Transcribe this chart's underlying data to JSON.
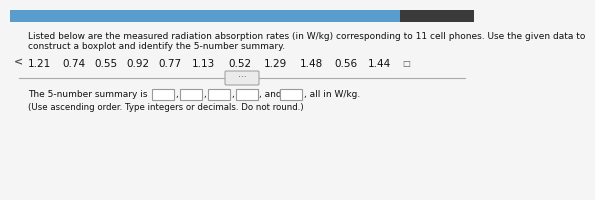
{
  "title_text1": "Listed below are the measured radiation absorption rates (in W/kg) corresponding to 11 cell phones. Use the given data to",
  "title_text2": "construct a boxplot and identify the 5-number summary.",
  "data_values": [
    "1.21",
    "0.74",
    "0.55",
    "0.92",
    "0.77",
    "1.13",
    "0.52",
    "1.29",
    "1.48",
    "0.56",
    "1.44"
  ],
  "summary_text": "The 5-number summary is",
  "and_text": "and",
  "units_text": "all in W/kg.",
  "instruction_text": "(Use ascending order. Type integers or decimals. Do not round.)",
  "bg_color": "#e8e8e8",
  "white_bg": "#f5f5f5",
  "text_color": "#111111",
  "box_color": "#ffffff",
  "box_border": "#999999",
  "header_color": "#4a90c4",
  "divider_color": "#aaaaaa",
  "font_size": 6.5,
  "data_font_size": 7.5,
  "small_font": 6.2,
  "arrow_color": "#555555"
}
